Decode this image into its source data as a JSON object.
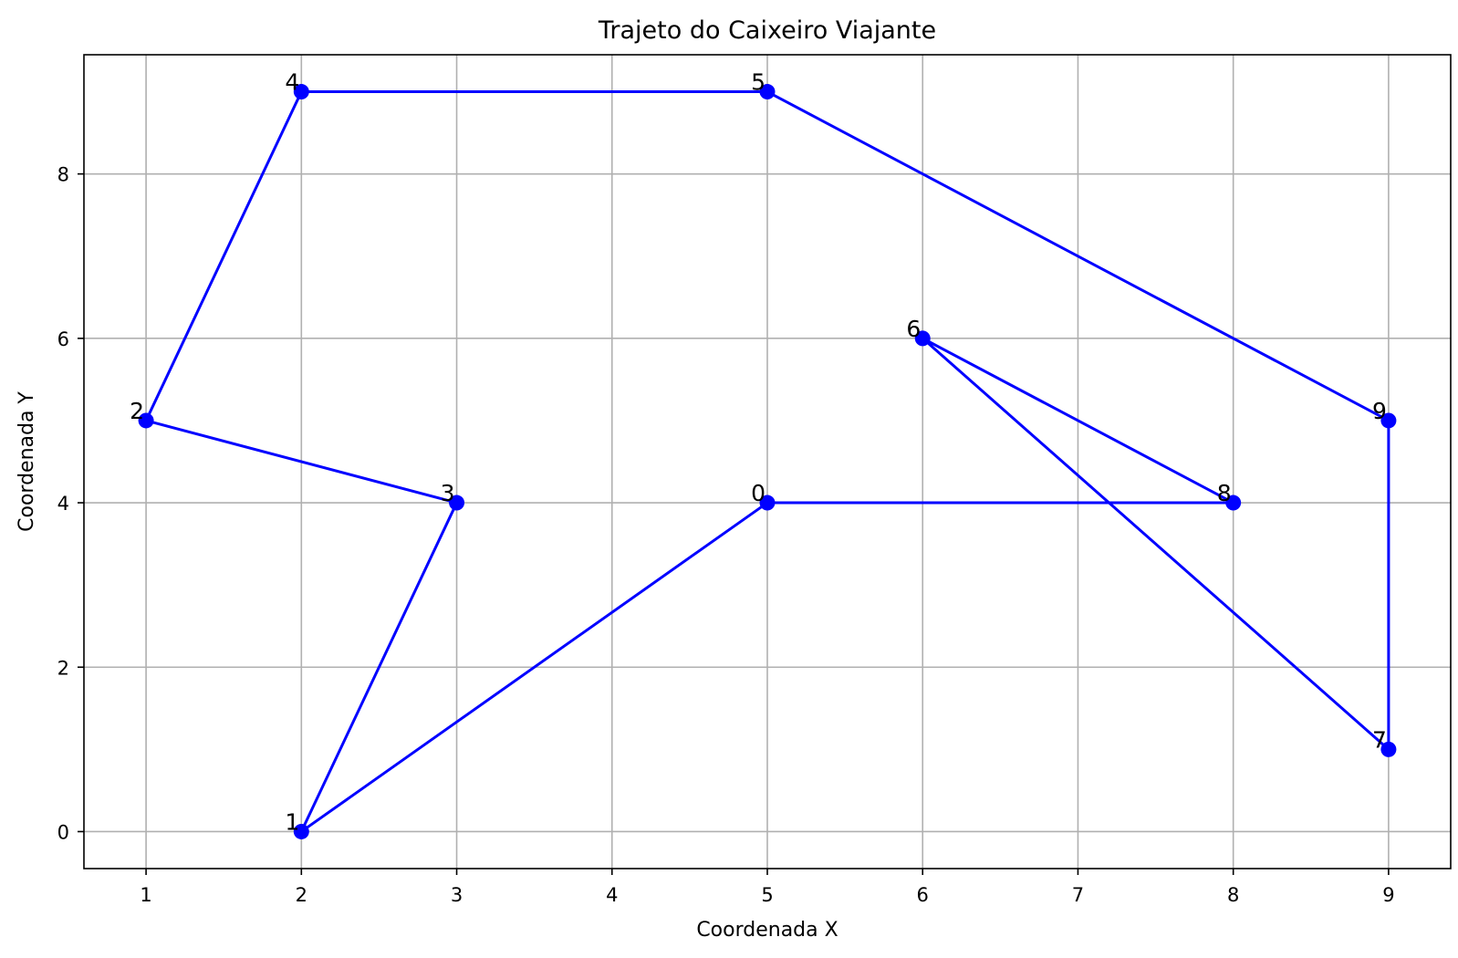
{
  "chart_data": {
    "type": "line",
    "title": "Trajeto do Caixeiro Viajante",
    "xlabel": "Coordenada X",
    "ylabel": "Coordenada Y",
    "xlim": [
      0.6,
      9.4
    ],
    "ylim": [
      -0.45,
      9.45
    ],
    "xticks": [
      1,
      2,
      3,
      4,
      5,
      6,
      7,
      8,
      9
    ],
    "yticks": [
      0,
      2,
      4,
      6,
      8
    ],
    "grid": true,
    "legend": "none",
    "colors": {
      "line": "#0000ff",
      "marker": "#0000ff",
      "grid": "#b0b0b0",
      "axes": "#000000"
    },
    "points": [
      {
        "label": "0",
        "x": 5,
        "y": 4
      },
      {
        "label": "1",
        "x": 2,
        "y": 0
      },
      {
        "label": "2",
        "x": 1,
        "y": 5
      },
      {
        "label": "3",
        "x": 3,
        "y": 4
      },
      {
        "label": "4",
        "x": 2,
        "y": 9
      },
      {
        "label": "5",
        "x": 5,
        "y": 9
      },
      {
        "label": "6",
        "x": 6,
        "y": 6
      },
      {
        "label": "7",
        "x": 9,
        "y": 1
      },
      {
        "label": "8",
        "x": 8,
        "y": 4
      },
      {
        "label": "9",
        "x": 9,
        "y": 5
      }
    ],
    "route": [
      0,
      1,
      3,
      2,
      4,
      5,
      9,
      7,
      6,
      8,
      0
    ]
  }
}
